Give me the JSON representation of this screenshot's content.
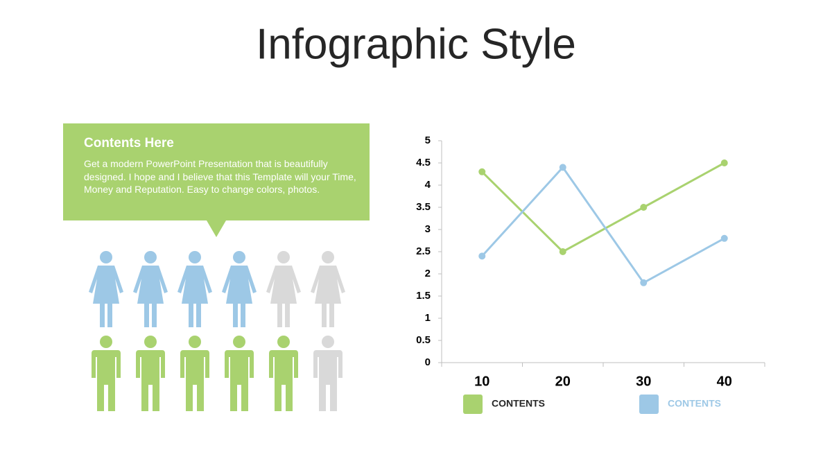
{
  "header": {
    "title": "Infographic Style"
  },
  "callout": {
    "title": "Contents Here",
    "body": "Get a modern PowerPoint  Presentation that is beautifully designed. I hope and I believe that this Template will your Time, Money and Reputation. Easy to change colors, photos."
  },
  "chart_data": {
    "type": "line",
    "categories": [
      "10",
      "20",
      "30",
      "40"
    ],
    "series": [
      {
        "name": "CONTENTS",
        "color": "#a9d26f",
        "values": [
          4.3,
          2.5,
          3.5,
          4.5
        ]
      },
      {
        "name": "CONTENTS",
        "color": "#9dc8e6",
        "values": [
          2.4,
          4.4,
          1.8,
          2.8
        ]
      }
    ],
    "ylim": [
      0,
      5
    ],
    "yticks": [
      0,
      0.5,
      1,
      1.5,
      2,
      2.5,
      3,
      3.5,
      4,
      4.5,
      5
    ]
  }
}
